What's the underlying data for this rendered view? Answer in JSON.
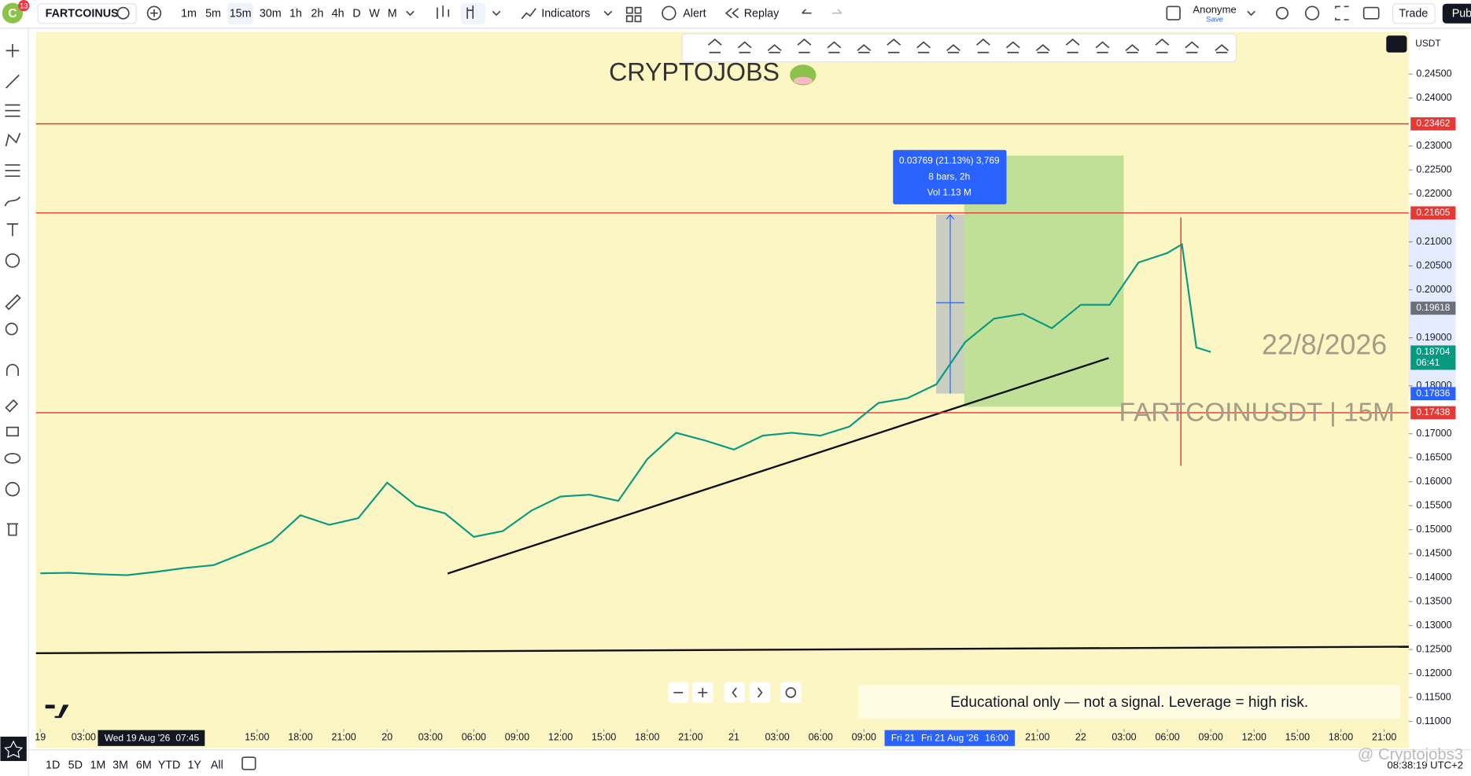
{
  "toolbar": {
    "avatar": "C",
    "badge": "13",
    "symbol": "FARTCOINUS",
    "intervals": [
      "1m",
      "5m",
      "15m",
      "30m",
      "1h",
      "2h",
      "4h",
      "D",
      "W",
      "M"
    ],
    "indicators": "Indicators",
    "alert": "Alert",
    "replay": "Replay",
    "account": "Anonyme",
    "save": "Save",
    "trade": "Trade",
    "publish": "Pub"
  },
  "currency": "USDT",
  "overlays": {
    "brand": "CRYPTOJOBS",
    "date": "22/8/2026",
    "symbol_label": "FARTCOINUSDT | 15M",
    "disclaimer": "Educational only — not a signal. Leverage  = high risk.",
    "watermark": "@ Cryptojobs3"
  },
  "measure": {
    "lines": [
      "0.03769 (21.13%) 3,769",
      "8 bars, 2h",
      "Vol 1.13 M"
    ]
  },
  "crosshair": {
    "left_date": "Wed 19 Aug '26",
    "left_time": "07:45",
    "date_short": "Fri 21",
    "date": "Fri 21 Aug '26",
    "time": "16:00"
  },
  "ranges": [
    "1D",
    "5D",
    "1M",
    "3M",
    "6M",
    "YTD",
    "1Y",
    "All"
  ],
  "clock": "08:38:19 UTC+2",
  "chart_data": {
    "type": "line",
    "color": "#089981",
    "x": [
      0,
      2,
      4,
      6,
      8,
      10,
      12,
      14,
      16,
      18,
      20,
      22,
      24,
      26,
      28,
      30,
      32,
      34,
      36,
      38,
      40,
      42,
      44,
      46,
      48,
      50,
      52,
      54,
      56,
      58,
      60,
      62,
      64,
      66,
      68,
      70,
      72,
      74,
      76,
      78,
      79,
      80,
      81
    ],
    "values": [
      0.1409,
      0.141,
      0.1407,
      0.1405,
      0.1412,
      0.142,
      0.1426,
      0.145,
      0.1475,
      0.153,
      0.151,
      0.1524,
      0.1598,
      0.155,
      0.1534,
      0.1485,
      0.1497,
      0.154,
      0.1569,
      0.1573,
      0.156,
      0.1647,
      0.1702,
      0.1686,
      0.1667,
      0.1696,
      0.1702,
      0.1696,
      0.1715,
      0.1764,
      0.1774,
      0.1803,
      0.1891,
      0.194,
      0.195,
      0.192,
      0.1969,
      0.1969,
      0.2057,
      0.2077,
      0.2095,
      0.188,
      0.18704
    ],
    "xlim": [
      -0.3,
      94.7
    ],
    "xticks": [
      {
        "value": 0,
        "label": "19"
      },
      {
        "value": 3,
        "label": "03:00"
      },
      {
        "value": 15,
        "label": "15:00"
      },
      {
        "value": 18,
        "label": "18:00"
      },
      {
        "value": 21,
        "label": "21:00"
      },
      {
        "value": 24,
        "label": "20"
      },
      {
        "value": 27,
        "label": "03:00"
      },
      {
        "value": 30,
        "label": "06:00"
      },
      {
        "value": 33,
        "label": "09:00"
      },
      {
        "value": 36,
        "label": "12:00"
      },
      {
        "value": 39,
        "label": "15:00"
      },
      {
        "value": 42,
        "label": "18:00"
      },
      {
        "value": 45,
        "label": "21:00"
      },
      {
        "value": 48,
        "label": "21"
      },
      {
        "value": 51,
        "label": "03:00"
      },
      {
        "value": 54,
        "label": "06:00"
      },
      {
        "value": 57,
        "label": "09:00"
      },
      {
        "value": 69,
        "label": "21:00"
      },
      {
        "value": 72,
        "label": "22"
      },
      {
        "value": 75,
        "label": "03:00"
      },
      {
        "value": 78,
        "label": "06:00"
      },
      {
        "value": 81,
        "label": "09:00"
      },
      {
        "value": 84,
        "label": "12:00"
      },
      {
        "value": 87,
        "label": "15:00"
      },
      {
        "value": 90,
        "label": "18:00"
      },
      {
        "value": 93,
        "label": "21:00"
      }
    ],
    "ylim": [
      0.1084,
      0.2538
    ],
    "yticks": [
      {
        "value": 0.245,
        "label": "0.24500"
      },
      {
        "value": 0.24,
        "label": "0.24000"
      },
      {
        "value": 0.23,
        "label": "0.23000"
      },
      {
        "value": 0.225,
        "label": "0.22500"
      },
      {
        "value": 0.22,
        "label": "0.22000"
      },
      {
        "value": 0.21,
        "label": "0.21000"
      },
      {
        "value": 0.205,
        "label": "0.20500"
      },
      {
        "value": 0.2,
        "label": "0.20000"
      },
      {
        "value": 0.19,
        "label": "0.19000"
      },
      {
        "value": 0.18,
        "label": "0.18000"
      },
      {
        "value": 0.17,
        "label": "0.17000"
      },
      {
        "value": 0.165,
        "label": "0.16500"
      },
      {
        "value": 0.16,
        "label": "0.16000"
      },
      {
        "value": 0.155,
        "label": "0.15500"
      },
      {
        "value": 0.15,
        "label": "0.15000"
      },
      {
        "value": 0.145,
        "label": "0.14500"
      },
      {
        "value": 0.14,
        "label": "0.14000"
      },
      {
        "value": 0.135,
        "label": "0.13500"
      },
      {
        "value": 0.13,
        "label": "0.13000"
      },
      {
        "value": 0.125,
        "label": "0.12500"
      },
      {
        "value": 0.12,
        "label": "0.12000"
      },
      {
        "value": 0.115,
        "label": "0.11500"
      },
      {
        "value": 0.11,
        "label": "0.11000"
      }
    ],
    "hlines": [
      0.23462,
      0.21605,
      0.17438
    ],
    "hline_color": "#e53935",
    "price_labels": [
      0.19618,
      0.18704,
      0.17836
    ],
    "countdown": "06:41",
    "grid": false
  }
}
